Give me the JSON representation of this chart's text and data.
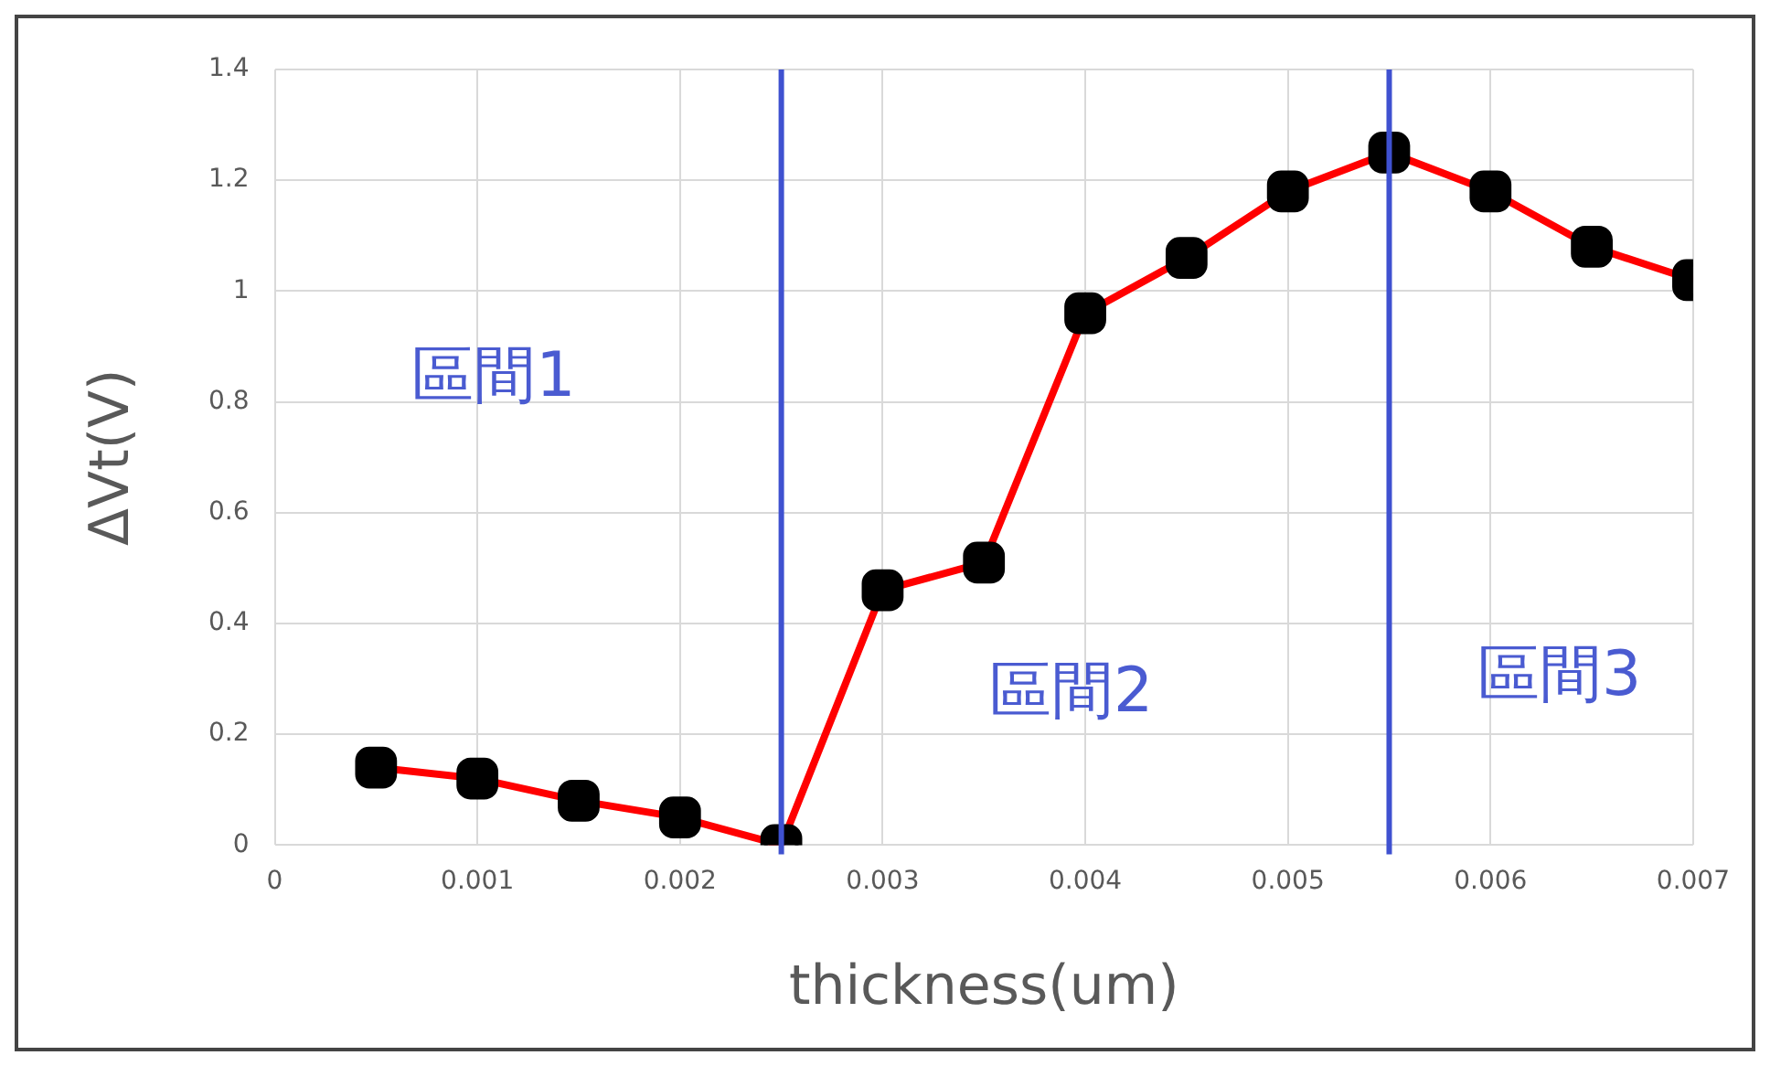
{
  "chart_data": {
    "type": "line",
    "xlabel": "thickness(um)",
    "ylabel": "ΔVt(V)",
    "x": [
      0.0005,
      0.001,
      0.0015,
      0.002,
      0.0025,
      0.003,
      0.0035,
      0.004,
      0.0045,
      0.005,
      0.0055,
      0.006,
      0.0065,
      0.007
    ],
    "series": [
      {
        "color": "#ff0000",
        "values": [
          0.14,
          0.12,
          0.08,
          0.05,
          0,
          0.46,
          0.51,
          0.96,
          1.06,
          1.18,
          1.25,
          1.18,
          1.08,
          1.02
        ]
      }
    ],
    "xlim": [
      0,
      0.007
    ],
    "xticks": [
      0,
      0.001,
      0.002,
      0.003,
      0.004,
      0.005,
      0.006,
      0.007
    ],
    "ylim": [
      0,
      1.4
    ],
    "yticks": [
      0,
      0.2,
      0.4,
      0.6,
      0.8,
      1,
      1.2,
      1.4
    ],
    "ref_lines": [
      {
        "axis": "x",
        "value": 0.0025,
        "color": "#3f51d0"
      },
      {
        "axis": "x",
        "value": 0.0055,
        "color": "#3f51d0"
      }
    ],
    "annotations": [
      "區間1",
      "區間2",
      "區間3"
    ],
    "grid": true,
    "legend": false,
    "marker": "square",
    "line_style": "solid"
  }
}
